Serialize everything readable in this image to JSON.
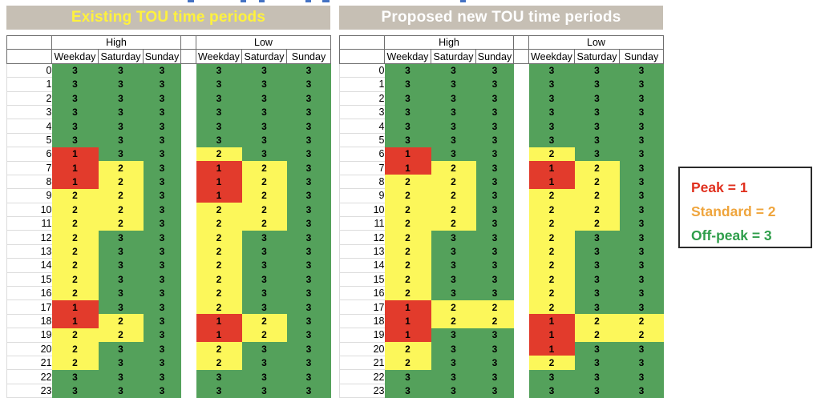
{
  "colors": {
    "peak_cell": "#e23b2c",
    "standard_cell": "#fcf75a",
    "offpeak_cell": "#54a15b",
    "title_bar_bg": "#c6bfb4",
    "header_border": "#6e6e6e",
    "gridline": "#dcdcdc",
    "clipped_caption": "#4472c4"
  },
  "legend": {
    "items": [
      {
        "label": "Peak = 1",
        "color": "#e0301e"
      },
      {
        "label": "Standard = 2",
        "color": "#efa53d"
      },
      {
        "label": "Off-peak = 3",
        "color": "#2f9e4b"
      }
    ]
  },
  "chart_data": [
    {
      "type": "heatmap",
      "title": "Existing TOU time periods",
      "title_color": "#fff23d",
      "hours": [
        0,
        1,
        2,
        3,
        4,
        5,
        6,
        7,
        8,
        9,
        10,
        11,
        12,
        13,
        14,
        15,
        16,
        17,
        18,
        19,
        20,
        21,
        22,
        23
      ],
      "day_columns": [
        "Weekday",
        "Saturday",
        "Sunday"
      ],
      "value_meaning": {
        "1": "Peak",
        "2": "Standard",
        "3": "Off-peak"
      },
      "seasons": [
        {
          "name": "High",
          "values": [
            [
              3,
              3,
              3
            ],
            [
              3,
              3,
              3
            ],
            [
              3,
              3,
              3
            ],
            [
              3,
              3,
              3
            ],
            [
              3,
              3,
              3
            ],
            [
              3,
              3,
              3
            ],
            [
              1,
              3,
              3
            ],
            [
              1,
              2,
              3
            ],
            [
              1,
              2,
              3
            ],
            [
              2,
              2,
              3
            ],
            [
              2,
              2,
              3
            ],
            [
              2,
              2,
              3
            ],
            [
              2,
              3,
              3
            ],
            [
              2,
              3,
              3
            ],
            [
              2,
              3,
              3
            ],
            [
              2,
              3,
              3
            ],
            [
              2,
              3,
              3
            ],
            [
              1,
              3,
              3
            ],
            [
              1,
              2,
              3
            ],
            [
              2,
              2,
              3
            ],
            [
              2,
              3,
              3
            ],
            [
              2,
              3,
              3
            ],
            [
              3,
              3,
              3
            ],
            [
              3,
              3,
              3
            ]
          ]
        },
        {
          "name": "Low",
          "values": [
            [
              3,
              3,
              3
            ],
            [
              3,
              3,
              3
            ],
            [
              3,
              3,
              3
            ],
            [
              3,
              3,
              3
            ],
            [
              3,
              3,
              3
            ],
            [
              3,
              3,
              3
            ],
            [
              2,
              3,
              3
            ],
            [
              1,
              2,
              3
            ],
            [
              1,
              2,
              3
            ],
            [
              1,
              2,
              3
            ],
            [
              2,
              2,
              3
            ],
            [
              2,
              2,
              3
            ],
            [
              2,
              3,
              3
            ],
            [
              2,
              3,
              3
            ],
            [
              2,
              3,
              3
            ],
            [
              2,
              3,
              3
            ],
            [
              2,
              3,
              3
            ],
            [
              2,
              3,
              3
            ],
            [
              1,
              2,
              3
            ],
            [
              1,
              2,
              3
            ],
            [
              2,
              3,
              3
            ],
            [
              2,
              3,
              3
            ],
            [
              3,
              3,
              3
            ],
            [
              3,
              3,
              3
            ]
          ]
        }
      ]
    },
    {
      "type": "heatmap",
      "title": "Proposed new TOU time periods",
      "title_color": "#ffffff",
      "hours": [
        0,
        1,
        2,
        3,
        4,
        5,
        6,
        7,
        8,
        9,
        10,
        11,
        12,
        13,
        14,
        15,
        16,
        17,
        18,
        19,
        20,
        21,
        22,
        23
      ],
      "day_columns": [
        "Weekday",
        "Saturday",
        "Sunday"
      ],
      "value_meaning": {
        "1": "Peak",
        "2": "Standard",
        "3": "Off-peak"
      },
      "seasons": [
        {
          "name": "High",
          "values": [
            [
              3,
              3,
              3
            ],
            [
              3,
              3,
              3
            ],
            [
              3,
              3,
              3
            ],
            [
              3,
              3,
              3
            ],
            [
              3,
              3,
              3
            ],
            [
              3,
              3,
              3
            ],
            [
              1,
              3,
              3
            ],
            [
              1,
              2,
              3
            ],
            [
              2,
              2,
              3
            ],
            [
              2,
              2,
              3
            ],
            [
              2,
              2,
              3
            ],
            [
              2,
              2,
              3
            ],
            [
              2,
              3,
              3
            ],
            [
              2,
              3,
              3
            ],
            [
              2,
              3,
              3
            ],
            [
              2,
              3,
              3
            ],
            [
              2,
              3,
              3
            ],
            [
              1,
              2,
              2
            ],
            [
              1,
              2,
              2
            ],
            [
              1,
              3,
              3
            ],
            [
              2,
              3,
              3
            ],
            [
              2,
              3,
              3
            ],
            [
              3,
              3,
              3
            ],
            [
              3,
              3,
              3
            ]
          ]
        },
        {
          "name": "Low",
          "values": [
            [
              3,
              3,
              3
            ],
            [
              3,
              3,
              3
            ],
            [
              3,
              3,
              3
            ],
            [
              3,
              3,
              3
            ],
            [
              3,
              3,
              3
            ],
            [
              3,
              3,
              3
            ],
            [
              2,
              3,
              3
            ],
            [
              1,
              2,
              3
            ],
            [
              1,
              2,
              3
            ],
            [
              2,
              2,
              3
            ],
            [
              2,
              2,
              3
            ],
            [
              2,
              2,
              3
            ],
            [
              2,
              3,
              3
            ],
            [
              2,
              3,
              3
            ],
            [
              2,
              3,
              3
            ],
            [
              2,
              3,
              3
            ],
            [
              2,
              3,
              3
            ],
            [
              2,
              3,
              3
            ],
            [
              1,
              2,
              2
            ],
            [
              1,
              2,
              2
            ],
            [
              1,
              3,
              3
            ],
            [
              2,
              3,
              3
            ],
            [
              3,
              3,
              3
            ],
            [
              3,
              3,
              3
            ]
          ]
        }
      ]
    }
  ]
}
